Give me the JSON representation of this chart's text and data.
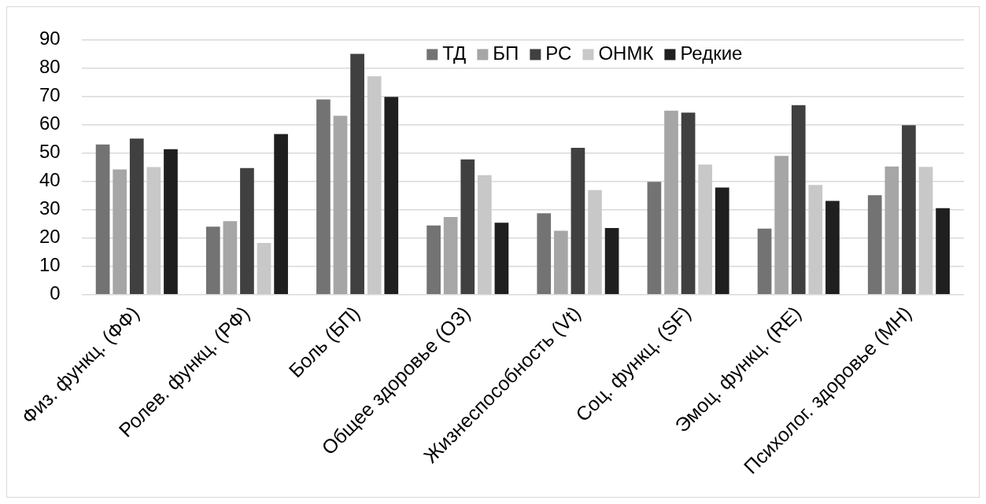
{
  "chart_data": {
    "type": "bar",
    "categories": [
      "Физ. функц. (ФФ)",
      "Ролев. функц. (РФ)",
      "Боль (БП)",
      "Общее здоровье (ОЗ)",
      "Жизнеспособность (Vt)",
      "Соц. функц. (SF)",
      "Эмоц. функц. (RE)",
      "Психолог. здоровье (MH)"
    ],
    "series": [
      {
        "name": "ТД",
        "color": "#737373",
        "values": [
          53,
          24,
          68.9,
          24.4,
          28.7,
          39.8,
          23.3,
          35.1
        ]
      },
      {
        "name": "БП",
        "color": "#a6a6a6",
        "values": [
          44.2,
          25.9,
          63.1,
          27.4,
          22.5,
          64.9,
          49,
          45.2
        ]
      },
      {
        "name": "РС",
        "color": "#404040",
        "values": [
          55.1,
          44.7,
          85,
          47.7,
          51.8,
          64.2,
          66.9,
          59.8
        ]
      },
      {
        "name": "ОНМК",
        "color": "#c8c8c8",
        "values": [
          45,
          18.2,
          77.1,
          42.2,
          36.9,
          45.9,
          38.7,
          45.1
        ]
      },
      {
        "name": "Редкие",
        "color": "#1f1f1f",
        "values": [
          51.3,
          56.7,
          69.8,
          25.4,
          23.5,
          37.8,
          33.1,
          30.5
        ]
      }
    ],
    "ylim": [
      0,
      90
    ],
    "yticks": [
      0,
      10,
      20,
      30,
      40,
      50,
      60,
      70,
      80,
      90
    ],
    "grid": "y",
    "legend": "top"
  }
}
